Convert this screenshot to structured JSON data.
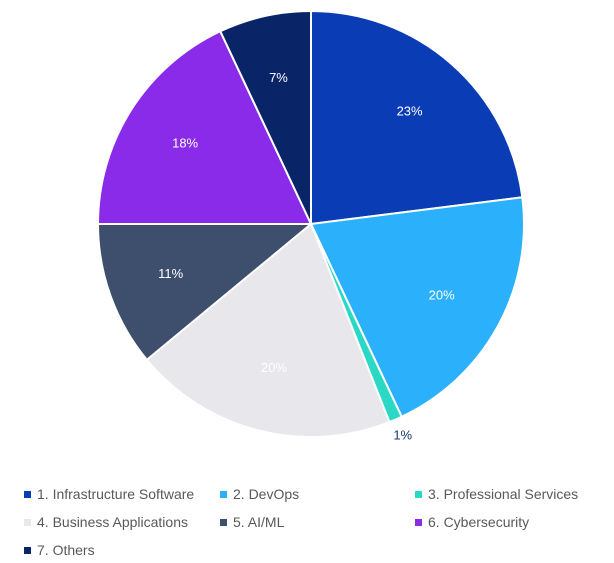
{
  "chart_data": {
    "type": "pie",
    "title": "",
    "categories": [
      "1. Infrastructure Software",
      "2. DevOps",
      "3. Professional Services",
      "4. Business Applications",
      "5. AI/ML",
      "6. Cybersecurity",
      "7. Others"
    ],
    "values": [
      23,
      20,
      1,
      20,
      11,
      18,
      7
    ],
    "data_labels": [
      "23%",
      "20%",
      "1%",
      "20%",
      "11%",
      "18%",
      "7%"
    ],
    "colors": [
      "#0a3db5",
      "#2bb0fb",
      "#2ad8c5",
      "#e7e7ec",
      "#3e4f6d",
      "#8a2be9",
      "#0a2468"
    ],
    "label_colors": [
      "#ffffff",
      "#ffffff",
      "#1e3a6e",
      "#ffffff",
      "#ffffff",
      "#ffffff",
      "#ffffff"
    ],
    "label_outside": [
      false,
      false,
      true,
      false,
      false,
      false,
      false
    ],
    "legend_position": "bottom"
  }
}
